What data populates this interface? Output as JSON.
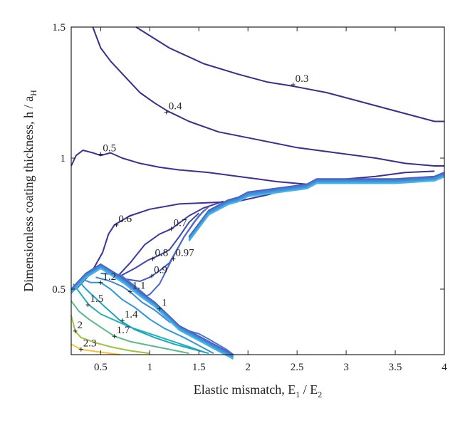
{
  "chart_data": {
    "type": "contour",
    "xlabel_main": "Elastic mismatch, E",
    "xlabel_sub1": "1",
    "xlabel_mid": " / E",
    "xlabel_sub2": "2",
    "ylabel_main": "Dimensionless coating thickness, h / a",
    "ylabel_sub": "H",
    "xlim": [
      0.2,
      4
    ],
    "ylim": [
      0.25,
      1.5
    ],
    "xticks": [
      0.5,
      1,
      1.5,
      2,
      2.5,
      3,
      3.5,
      4
    ],
    "xtick_labels": [
      "0.5",
      "1",
      "1.5",
      "2",
      "2.5",
      "3",
      "3.5",
      "4"
    ],
    "yticks": [
      0.5,
      1,
      1.5
    ],
    "ytick_labels": [
      "0.5",
      "1",
      "1.5"
    ],
    "grid": false,
    "levels": [
      {
        "label": "0.3",
        "color": "#3b2d8c",
        "points": [
          [
            0.86,
            1.5
          ],
          [
            1.2,
            1.42
          ],
          [
            1.55,
            1.36
          ],
          [
            1.9,
            1.32
          ],
          [
            2.2,
            1.29
          ],
          [
            2.45,
            1.275
          ],
          [
            2.8,
            1.25
          ],
          [
            3.1,
            1.22
          ],
          [
            3.4,
            1.19
          ],
          [
            3.7,
            1.16
          ],
          [
            3.9,
            1.14
          ],
          [
            4.0,
            1.14
          ]
        ],
        "label_at": [
          2.46,
          1.28
        ]
      },
      {
        "label": "0.4",
        "color": "#3b2d8c",
        "points": [
          [
            0.42,
            1.5
          ],
          [
            0.5,
            1.42
          ],
          [
            0.6,
            1.37
          ],
          [
            0.75,
            1.31
          ],
          [
            0.9,
            1.25
          ],
          [
            1.05,
            1.21
          ],
          [
            1.18,
            1.18
          ],
          [
            1.4,
            1.14
          ],
          [
            1.7,
            1.1
          ],
          [
            2.1,
            1.07
          ],
          [
            2.5,
            1.04
          ],
          [
            2.9,
            1.02
          ],
          [
            3.3,
            1.0
          ],
          [
            3.6,
            0.98
          ],
          [
            3.9,
            0.97
          ],
          [
            4.0,
            0.97
          ]
        ],
        "label_at": [
          1.17,
          1.175
        ]
      },
      {
        "label": "0.5",
        "color": "#3d2f95",
        "points": [
          [
            0.2,
            0.97
          ],
          [
            0.25,
            1.01
          ],
          [
            0.32,
            1.03
          ],
          [
            0.42,
            1.02
          ],
          [
            0.5,
            1.01
          ],
          [
            0.6,
            1.02
          ],
          [
            0.72,
            1.0
          ],
          [
            0.9,
            0.98
          ],
          [
            1.1,
            0.965
          ],
          [
            1.3,
            0.955
          ],
          [
            1.6,
            0.945
          ],
          [
            1.9,
            0.93
          ],
          [
            2.1,
            0.92
          ],
          [
            2.3,
            0.91
          ],
          [
            2.6,
            0.9
          ],
          [
            3.0,
            0.92
          ],
          [
            3.3,
            0.93
          ],
          [
            3.6,
            0.945
          ],
          [
            3.9,
            0.95
          ]
        ],
        "label_at": [
          0.5,
          1.015
        ]
      },
      {
        "label": "0.6",
        "color": "#3d3199",
        "points": [
          [
            0.25,
            0.5
          ],
          [
            0.4,
            0.56
          ],
          [
            0.52,
            0.64
          ],
          [
            0.58,
            0.71
          ],
          [
            0.64,
            0.745
          ],
          [
            0.8,
            0.78
          ],
          [
            1.0,
            0.805
          ],
          [
            1.3,
            0.825
          ],
          [
            1.6,
            0.83
          ],
          [
            1.9,
            0.835
          ],
          [
            2.2,
            0.86
          ],
          [
            2.4,
            0.88
          ]
        ],
        "label_at": [
          0.66,
          0.745
        ]
      },
      {
        "label": "0.7",
        "color": "#3f3aa4",
        "points": [
          [
            0.65,
            0.54
          ],
          [
            0.8,
            0.6
          ],
          [
            0.95,
            0.67
          ],
          [
            1.1,
            0.71
          ],
          [
            1.22,
            0.73
          ],
          [
            1.4,
            0.78
          ],
          [
            1.55,
            0.81
          ],
          [
            1.75,
            0.835
          ]
        ],
        "label_at": [
          1.22,
          0.73
        ]
      },
      {
        "label": "0.8",
        "color": "#3e46b0",
        "points": [
          [
            0.7,
            0.55
          ],
          [
            0.85,
            0.58
          ],
          [
            0.98,
            0.61
          ],
          [
            1.1,
            0.63
          ],
          [
            1.2,
            0.65
          ],
          [
            1.3,
            0.7
          ],
          [
            1.4,
            0.755
          ],
          [
            1.5,
            0.79
          ]
        ],
        "label_at": [
          1.03,
          0.615
        ]
      },
      {
        "label": "0.9",
        "color": "#4356bd",
        "points": [
          [
            0.72,
            0.54
          ],
          [
            0.9,
            0.53
          ],
          [
            1.0,
            0.545
          ],
          [
            1.1,
            0.57
          ],
          [
            1.2,
            0.6
          ],
          [
            1.35,
            0.7
          ],
          [
            1.45,
            0.755
          ],
          [
            1.55,
            0.8
          ]
        ],
        "label_at": [
          1.02,
          0.55
        ]
      },
      {
        "label": "0.97",
        "color": "#4a67c7",
        "points": [
          [
            0.74,
            0.54
          ],
          [
            0.86,
            0.5
          ],
          [
            0.94,
            0.47
          ],
          [
            1.0,
            0.48
          ],
          [
            1.1,
            0.52
          ],
          [
            1.22,
            0.61
          ],
          [
            1.35,
            0.7
          ],
          [
            1.5,
            0.78
          ],
          [
            1.6,
            0.815
          ]
        ],
        "label_at": [
          1.24,
          0.615
        ]
      },
      {
        "label": "1",
        "color": "#4e78cd",
        "points": [
          [
            0.5,
            0.56
          ],
          [
            0.7,
            0.555
          ],
          [
            0.82,
            0.52
          ],
          [
            0.95,
            0.48
          ],
          [
            1.05,
            0.44
          ],
          [
            1.12,
            0.415
          ],
          [
            1.25,
            0.37
          ],
          [
            1.35,
            0.345
          ],
          [
            1.5,
            0.33
          ],
          [
            1.62,
            0.305
          ],
          [
            1.78,
            0.27
          ],
          [
            1.85,
            0.25
          ]
        ],
        "label_at": [
          1.1,
          0.425
        ]
      },
      {
        "label": "1.1",
        "color": "#4187d6",
        "points": [
          [
            0.45,
            0.545
          ],
          [
            0.6,
            0.53
          ],
          [
            0.72,
            0.51
          ],
          [
            0.8,
            0.49
          ],
          [
            0.92,
            0.45
          ],
          [
            1.05,
            0.42
          ],
          [
            1.2,
            0.375
          ],
          [
            1.4,
            0.34
          ],
          [
            1.55,
            0.31
          ],
          [
            1.7,
            0.27
          ],
          [
            1.78,
            0.25
          ]
        ],
        "label_at": [
          0.8,
          0.49
        ]
      },
      {
        "label": "1.2",
        "color": "#2e96da",
        "points": [
          [
            0.33,
            0.535
          ],
          [
            0.4,
            0.525
          ],
          [
            0.5,
            0.525
          ],
          [
            0.6,
            0.5
          ],
          [
            0.72,
            0.46
          ],
          [
            0.85,
            0.43
          ],
          [
            1.0,
            0.385
          ],
          [
            1.15,
            0.35
          ],
          [
            1.35,
            0.315
          ],
          [
            1.5,
            0.285
          ],
          [
            1.65,
            0.255
          ]
        ],
        "label_at": [
          0.5,
          0.525
        ]
      },
      {
        "label": "1.5",
        "color": "#23b1b7",
        "points": [
          [
            0.22,
            0.52
          ],
          [
            0.3,
            0.48
          ],
          [
            0.38,
            0.44
          ],
          [
            0.5,
            0.405
          ],
          [
            0.65,
            0.38
          ],
          [
            0.8,
            0.355
          ],
          [
            1.0,
            0.33
          ],
          [
            1.2,
            0.305
          ],
          [
            1.4,
            0.28
          ],
          [
            1.55,
            0.26
          ]
        ],
        "label_at": [
          0.37,
          0.44
        ]
      },
      {
        "label": "1.4",
        "color": "#1aa6c1",
        "points": [
          [
            0.28,
            0.53
          ],
          [
            0.35,
            0.5
          ],
          [
            0.45,
            0.465
          ],
          [
            0.55,
            0.43
          ],
          [
            0.7,
            0.38
          ],
          [
            0.85,
            0.345
          ],
          [
            1.05,
            0.315
          ],
          [
            1.25,
            0.29
          ],
          [
            1.45,
            0.27
          ],
          [
            1.6,
            0.255
          ]
        ],
        "label_at": [
          0.72,
          0.38
        ]
      },
      {
        "label": "1.7",
        "color": "#59ba8a",
        "points": [
          [
            0.2,
            0.455
          ],
          [
            0.28,
            0.415
          ],
          [
            0.38,
            0.385
          ],
          [
            0.5,
            0.355
          ],
          [
            0.64,
            0.32
          ],
          [
            0.8,
            0.3
          ],
          [
            1.0,
            0.285
          ],
          [
            1.2,
            0.27
          ],
          [
            1.4,
            0.255
          ]
        ],
        "label_at": [
          0.64,
          0.32
        ]
      },
      {
        "label": "2",
        "color": "#9fc240",
        "points": [
          [
            0.2,
            0.4
          ],
          [
            0.24,
            0.34
          ],
          [
            0.3,
            0.315
          ],
          [
            0.45,
            0.295
          ],
          [
            0.6,
            0.28
          ],
          [
            0.8,
            0.265
          ],
          [
            1.0,
            0.255
          ]
        ],
        "label_at": [
          0.24,
          0.34
        ]
      },
      {
        "label": "2.3",
        "color": "#f5c231",
        "points": [
          [
            0.2,
            0.29
          ],
          [
            0.3,
            0.27
          ],
          [
            0.45,
            0.262
          ],
          [
            0.6,
            0.255
          ],
          [
            0.7,
            0.25
          ]
        ],
        "label_at": [
          0.3,
          0.27
        ]
      }
    ],
    "boundary_band": {
      "colors": [
        "#4a5fc1",
        "#4d6bc9",
        "#4a7fd2",
        "#3b93da",
        "#31a0dd",
        "#4bb2e6"
      ],
      "upper": [
        [
          0.2,
          0.5
        ],
        [
          0.35,
          0.56
        ],
        [
          0.5,
          0.595
        ],
        [
          0.65,
          0.56
        ],
        [
          0.75,
          0.535
        ],
        [
          0.9,
          0.49
        ],
        [
          1.05,
          0.45
        ],
        [
          1.3,
          0.36
        ],
        [
          1.5,
          0.32
        ],
        [
          1.6,
          0.3
        ],
        [
          1.7,
          0.28
        ],
        [
          1.8,
          0.26
        ],
        [
          1.85,
          0.25
        ]
      ],
      "lower": [
        [
          1.4,
          0.7
        ],
        [
          1.6,
          0.8
        ],
        [
          1.8,
          0.84
        ],
        [
          1.9,
          0.85
        ],
        [
          2.0,
          0.87
        ],
        [
          2.2,
          0.88
        ],
        [
          2.3,
          0.885
        ],
        [
          2.6,
          0.9
        ],
        [
          2.7,
          0.92
        ],
        [
          3.0,
          0.92
        ],
        [
          3.5,
          0.92
        ],
        [
          3.9,
          0.93
        ],
        [
          4.0,
          0.945
        ]
      ]
    }
  }
}
